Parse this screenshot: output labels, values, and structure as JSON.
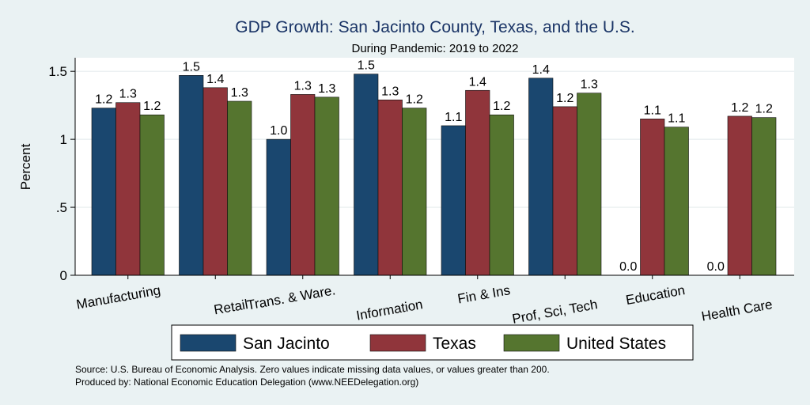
{
  "chart_data": {
    "type": "bar",
    "title": "GDP Growth: San Jacinto County, Texas, and the U.S.",
    "subtitle": "During Pandemic: 2019 to 2022",
    "xlabel": "",
    "ylabel": "Percent",
    "ylim": [
      0,
      1.6
    ],
    "yticks": [
      0,
      0.5,
      1,
      1.5
    ],
    "ytick_labels": [
      "0",
      ".5",
      "1",
      "1.5"
    ],
    "grid": true,
    "legend_position": "bottom",
    "categories": [
      "Manufacturing",
      "Retail",
      "Trans. & Ware.",
      "Information",
      "Fin & Ins",
      "Prof, Sci, Tech",
      "Education",
      "Health Care"
    ],
    "series": [
      {
        "name": "San Jacinto",
        "color": "#1a476f",
        "values": [
          1.23,
          1.47,
          1.0,
          1.48,
          1.1,
          1.45,
          0.0,
          0.0
        ],
        "labels": [
          "1.2",
          "1.5",
          "1.0",
          "1.5",
          "1.1",
          "1.4",
          "0.0",
          "0.0"
        ]
      },
      {
        "name": "Texas",
        "color": "#90353b",
        "values": [
          1.27,
          1.38,
          1.33,
          1.29,
          1.36,
          1.24,
          1.15,
          1.17
        ],
        "labels": [
          "1.3",
          "1.4",
          "1.3",
          "1.3",
          "1.4",
          "1.2",
          "1.1",
          "1.2"
        ]
      },
      {
        "name": "United States",
        "color": "#55752f",
        "values": [
          1.18,
          1.28,
          1.31,
          1.23,
          1.18,
          1.34,
          1.09,
          1.16
        ],
        "labels": [
          "1.2",
          "1.3",
          "1.3",
          "1.2",
          "1.2",
          "1.3",
          "1.1",
          "1.2"
        ]
      }
    ],
    "notes": [
      "Source: U.S. Bureau of Economic Analysis. Zero values indicate missing data values, or values greater than 200.",
      "Produced by: National Economic Education Delegation (www.NEEDelegation.org)"
    ]
  }
}
